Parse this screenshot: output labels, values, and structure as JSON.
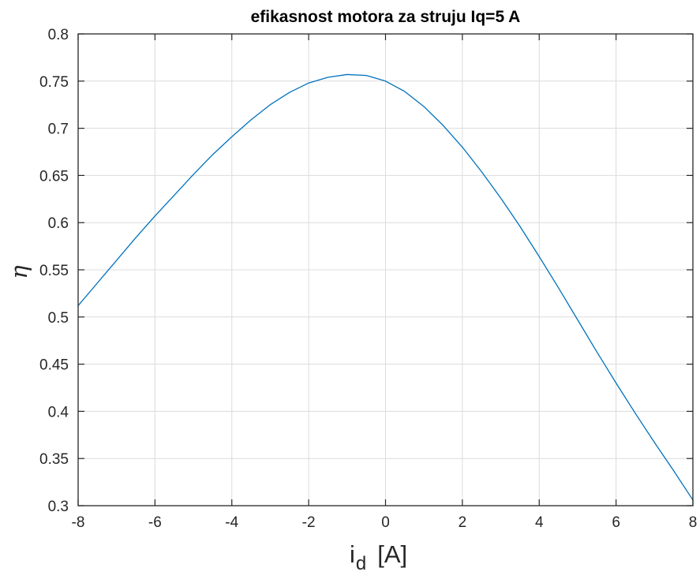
{
  "chart_data": {
    "type": "line",
    "title": "efikasnost motora za struju Iq=5 A",
    "xlabel": {
      "main": "i",
      "subscript": "d",
      "unit": "[A]"
    },
    "ylabel": "η",
    "xlim": [
      -8,
      8
    ],
    "ylim": [
      0.3,
      0.8
    ],
    "xticks": [
      -8,
      -6,
      -4,
      -2,
      0,
      2,
      4,
      6,
      8
    ],
    "xtick_labels": [
      "-8",
      "-6",
      "-4",
      "-2",
      "0",
      "2",
      "4",
      "6",
      "8"
    ],
    "yticks": [
      0.3,
      0.35,
      0.4,
      0.45,
      0.5,
      0.55,
      0.6,
      0.65,
      0.7,
      0.75,
      0.8
    ],
    "ytick_labels": [
      "0.3",
      "0.35",
      "0.4",
      "0.45",
      "0.5",
      "0.55",
      "0.6",
      "0.65",
      "0.7",
      "0.75",
      "0.8"
    ],
    "grid": true,
    "series": [
      {
        "color": "#0072BD",
        "x": [
          -8,
          -7.5,
          -7,
          -6.5,
          -6,
          -5.5,
          -5,
          -4.5,
          -4,
          -3.5,
          -3,
          -2.5,
          -2,
          -1.5,
          -1,
          -0.5,
          0,
          0.5,
          1,
          1.5,
          2,
          2.5,
          3,
          3.5,
          4,
          4.5,
          5,
          5.5,
          6,
          6.5,
          7,
          7.5,
          8
        ],
        "y": [
          0.512,
          0.536,
          0.56,
          0.584,
          0.607,
          0.629,
          0.651,
          0.672,
          0.691,
          0.709,
          0.725,
          0.738,
          0.748,
          0.754,
          0.757,
          0.756,
          0.75,
          0.739,
          0.723,
          0.703,
          0.68,
          0.654,
          0.626,
          0.596,
          0.564,
          0.531,
          0.497,
          0.463,
          0.43,
          0.398,
          0.367,
          0.337,
          0.306
        ]
      }
    ]
  }
}
